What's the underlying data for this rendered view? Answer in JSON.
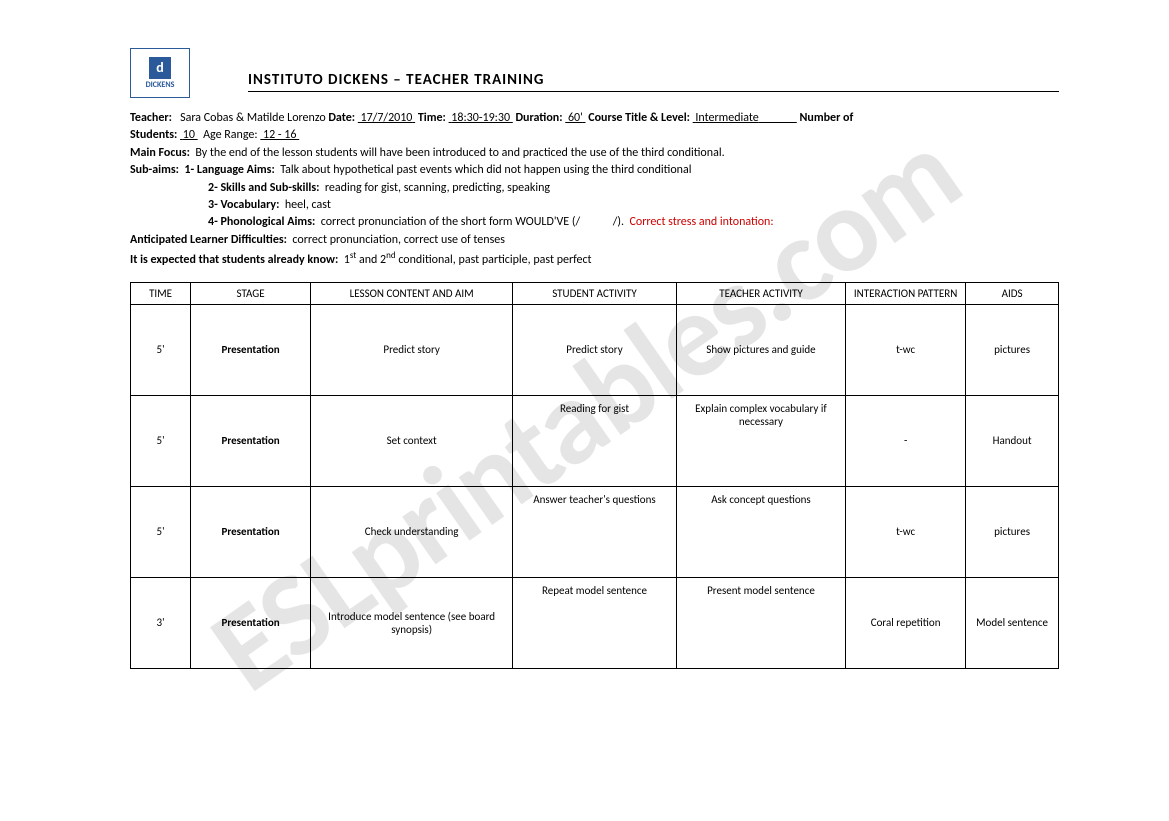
{
  "watermark": "ESLprintables.com",
  "logo": {
    "icon": "d",
    "text": "DICKENS"
  },
  "title": "INSTITUTO DICKENS – TEACHER TRAINING",
  "meta": {
    "teacher_lbl": "Teacher:",
    "teacher_val": "Sara Cobas & Matilde Lorenzo",
    "date_lbl": "Date:",
    "date_val": "17/7/2010",
    "time_lbl": "Time:",
    "time_val": "18:30-19:30",
    "duration_lbl": "Duration:",
    "duration_val": "60'",
    "course_lbl": "Course Title & Level:",
    "course_val": "Intermediate",
    "num_lbl": "Number of",
    "students_lbl": "Students:",
    "students_val": "10",
    "age_lbl": "Age Range:",
    "age_val": "12 - 16",
    "main_focus_lbl": "Main Focus:",
    "main_focus_val": "By the end of the lesson students will have been introduced to and practiced the use of the third conditional.",
    "subaims_lbl": "Sub-aims:",
    "lang_lbl": "1- Language Aims:",
    "lang_val": "Talk about hypothetical past events which did not happen using the third conditional",
    "skills_lbl": "2- Skills and Sub-skills:",
    "skills_val": "reading for gist, scanning, predicting, speaking",
    "vocab_lbl": "3- Vocabulary:",
    "vocab_val": "heel, cast",
    "phon_lbl": "4- Phonological Aims:",
    "phon_val1": "correct pronunciation of the short form WOULD'VE (/",
    "phon_val2": "/).",
    "phon_red": "Correct stress and intonation:",
    "difficulties_lbl": "Anticipated Learner Difficulties:",
    "difficulties_val": "correct pronunciation, correct use of tenses",
    "expected_lbl": "It is expected that students already know:",
    "expected_val1": "1",
    "expected_sup1": "st",
    "expected_val2": " and 2",
    "expected_sup2": "nd",
    "expected_val3": " conditional, past participle, past perfect"
  },
  "headers": {
    "time": "TIME",
    "stage": "STAGE",
    "content": "LESSON CONTENT AND AIM",
    "student": "STUDENT ACTIVITY",
    "teacher": "TEACHER ACTIVITY",
    "pattern": "INTERACTION PATTERN",
    "aids": "AIDS"
  },
  "rows": [
    {
      "time": "5'",
      "stage": "Presentation",
      "content": "Predict story",
      "student": "Predict story",
      "teacher": "Show pictures and guide",
      "pattern": "t-wc",
      "aids": "pictures"
    },
    {
      "time": "5'",
      "stage": "Presentation",
      "content": "Set context",
      "student": "Reading for gist",
      "teacher": "Explain complex vocabulary if necessary",
      "pattern": "-",
      "aids": "Handout"
    },
    {
      "time": "5'",
      "stage": "Presentation",
      "content": "Check understanding",
      "student": "Answer teacher's questions",
      "teacher": "Ask concept questions",
      "pattern": "t-wc",
      "aids": "pictures"
    },
    {
      "time": "3'",
      "stage": "Presentation",
      "content": "Introduce model sentence (see board synopsis)",
      "student": "Repeat model sentence",
      "teacher": "Present model sentence",
      "pattern": "Coral repetition",
      "aids": "Model sentence"
    }
  ]
}
